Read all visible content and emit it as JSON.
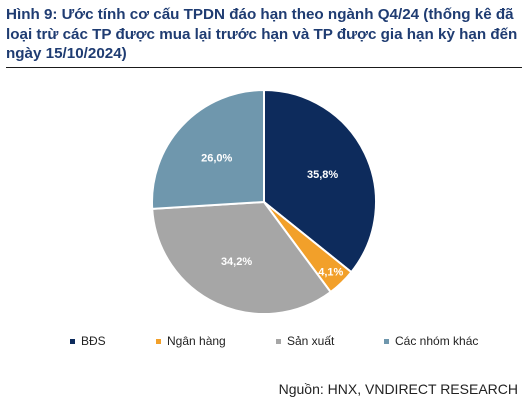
{
  "figure": {
    "title": "Hình 9: Ước tính cơ cấu TPDN đáo hạn theo ngành Q4/24 (thống kê đã loại trừ các TP được mua lại trước hạn và TP được gia hạn kỳ hạn đến ngày 15/10/2024)",
    "source": "Nguồn: HNX, VNDIRECT RESEARCH"
  },
  "chart_data": {
    "type": "pie",
    "title": "",
    "unit": "%",
    "legend_position": "bottom",
    "slices": [
      {
        "name": "BĐS",
        "value": 35.8,
        "label": "35,8%",
        "color": "#0d2b5c"
      },
      {
        "name": "Ngân hàng",
        "value": 4.1,
        "label": "4,1%",
        "color": "#f2a02a"
      },
      {
        "name": "Sản xuất",
        "value": 34.2,
        "label": "34,2%",
        "color": "#a6a6a6"
      },
      {
        "name": "Các nhóm khác",
        "value": 26.0,
        "label": "26,0%",
        "color": "#6f97ad"
      }
    ]
  }
}
